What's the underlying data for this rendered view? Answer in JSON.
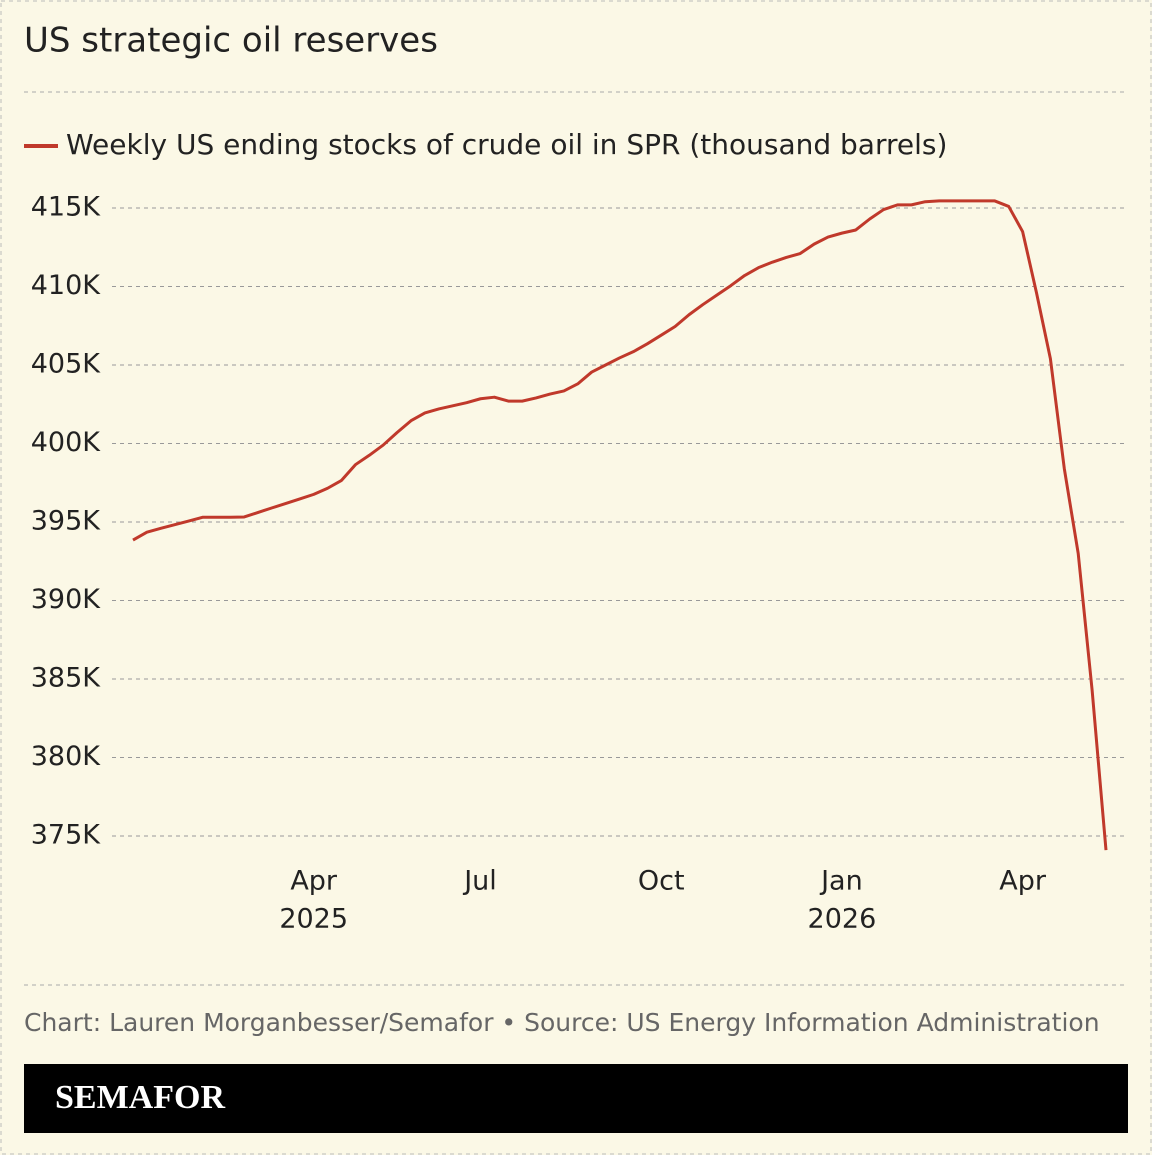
{
  "chart_data": {
    "type": "line",
    "title": "US strategic oil reserves",
    "source": "Chart: Lauren Morganbesser/Semafor • Source: US Energy Information Administration",
    "brand": "SEMAFOR",
    "categories": [
      null,
      null,
      null,
      null,
      null,
      null,
      null,
      null,
      null,
      null,
      null,
      null,
      null,
      "Apr",
      null,
      null,
      null,
      null,
      null,
      null,
      null,
      null,
      null,
      null,
      null,
      "Jul",
      null,
      null,
      null,
      null,
      null,
      null,
      null,
      null,
      null,
      null,
      null,
      null,
      "Oct",
      null,
      null,
      null,
      null,
      null,
      null,
      null,
      null,
      null,
      null,
      null,
      null,
      "Jan",
      null,
      null,
      null,
      null,
      null,
      null,
      null,
      null,
      null,
      null,
      null,
      null,
      "Apr",
      null,
      null,
      null,
      null,
      null,
      null
    ],
    "category_years": [
      null,
      null,
      null,
      null,
      null,
      null,
      null,
      null,
      null,
      null,
      null,
      null,
      null,
      "2025",
      null,
      null,
      null,
      null,
      null,
      null,
      null,
      null,
      null,
      null,
      null,
      null,
      null,
      null,
      null,
      null,
      null,
      null,
      null,
      null,
      null,
      null,
      null,
      null,
      null,
      null,
      null,
      null,
      null,
      null,
      null,
      null,
      null,
      null,
      null,
      null,
      null,
      "2026",
      null,
      null,
      null,
      null,
      null,
      null,
      null,
      null,
      null,
      null,
      null,
      null,
      null,
      null,
      null,
      null,
      null,
      null,
      null
    ],
    "series": [
      {
        "name": "Weekly US ending stocks of crude oil in SPR (thousand barrels)",
        "color": "#c0392b",
        "values": [
          393850,
          394350,
          394600,
          394830,
          395060,
          395300,
          395300,
          395300,
          395320,
          395610,
          395900,
          396180,
          396470,
          396760,
          397150,
          397650,
          398650,
          399250,
          399900,
          400700,
          401450,
          401950,
          402200,
          402400,
          402600,
          402850,
          402950,
          402700,
          402700,
          402900,
          403150,
          403350,
          403800,
          404550,
          405000,
          405450,
          405850,
          406350,
          406900,
          407450,
          408200,
          408850,
          409450,
          410050,
          410700,
          411200,
          411550,
          411850,
          412100,
          412700,
          413150,
          413400,
          413600,
          414300,
          414900,
          415200,
          415200,
          415400,
          415450,
          415450,
          415450,
          415450,
          415450,
          415100,
          413500,
          409600,
          405400,
          398400,
          393000,
          384300,
          374100
        ]
      }
    ],
    "ylim": [
      373300,
      418000
    ],
    "yticks": [
      {
        "value": 375000,
        "label": "375K"
      },
      {
        "value": 380000,
        "label": "380K"
      },
      {
        "value": 385000,
        "label": "385K"
      },
      {
        "value": 390000,
        "label": "390K"
      },
      {
        "value": 395000,
        "label": "395K"
      },
      {
        "value": 400000,
        "label": "400K"
      },
      {
        "value": 405000,
        "label": "405K"
      },
      {
        "value": 410000,
        "label": "410K"
      },
      {
        "value": 415000,
        "label": "415K"
      }
    ],
    "grid": true
  }
}
